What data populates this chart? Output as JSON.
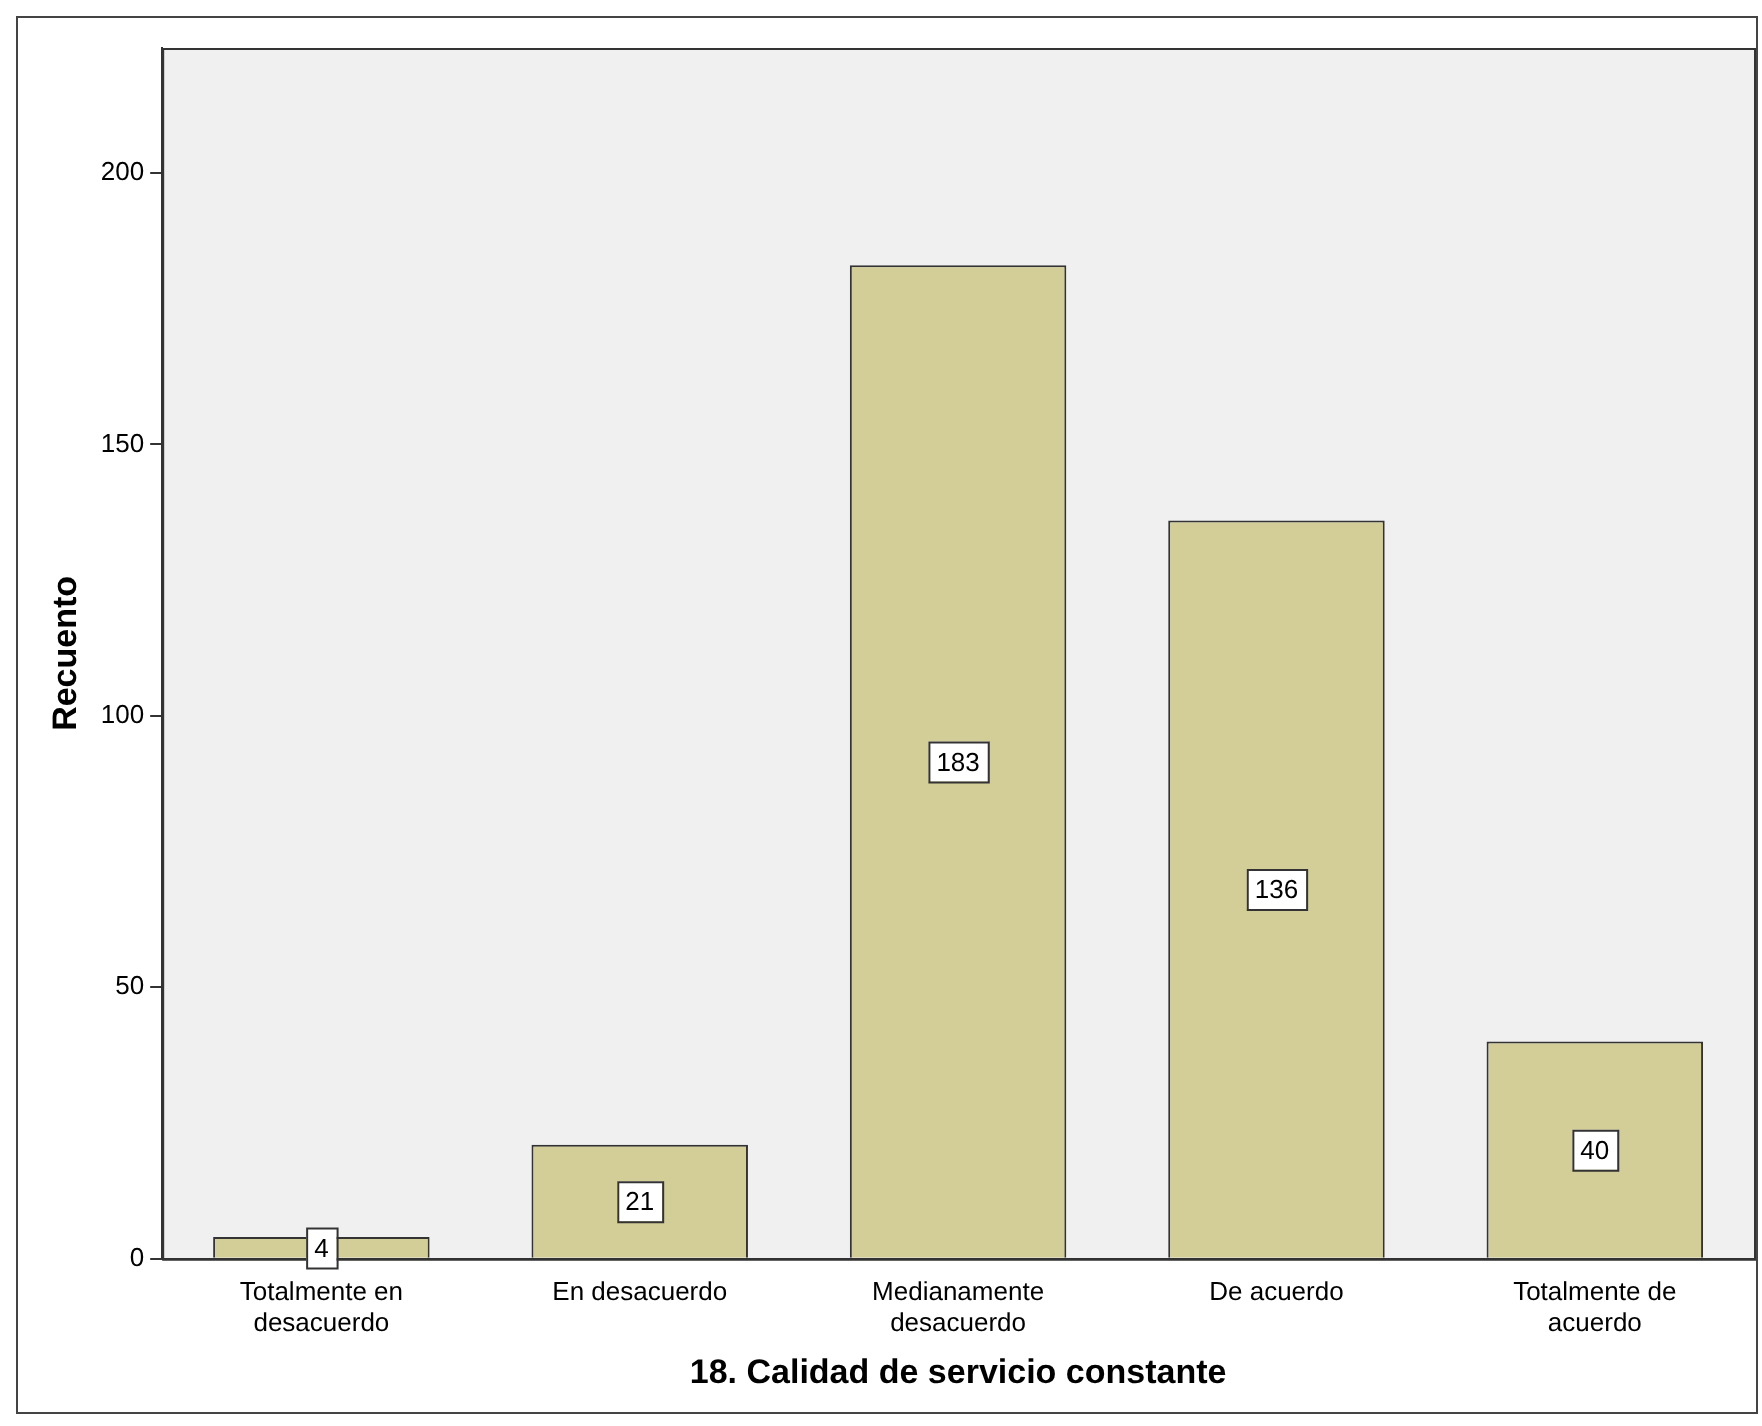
{
  "chart_data": {
    "type": "bar",
    "xlabel": "18. Calidad de servicio constante",
    "ylabel": "Recuento",
    "categories": [
      "Totalmente en desacuerdo",
      "En desacuerdo",
      "Medianamente desacuerdo",
      "De acuerdo",
      "Totalmente de acuerdo"
    ],
    "values": [
      4,
      21,
      183,
      136,
      40
    ],
    "color": "#d3ce97",
    "ylim": [
      0,
      223
    ],
    "yticks": [
      0,
      50,
      100,
      150,
      200
    ],
    "grid": false,
    "data_labels": true
  }
}
